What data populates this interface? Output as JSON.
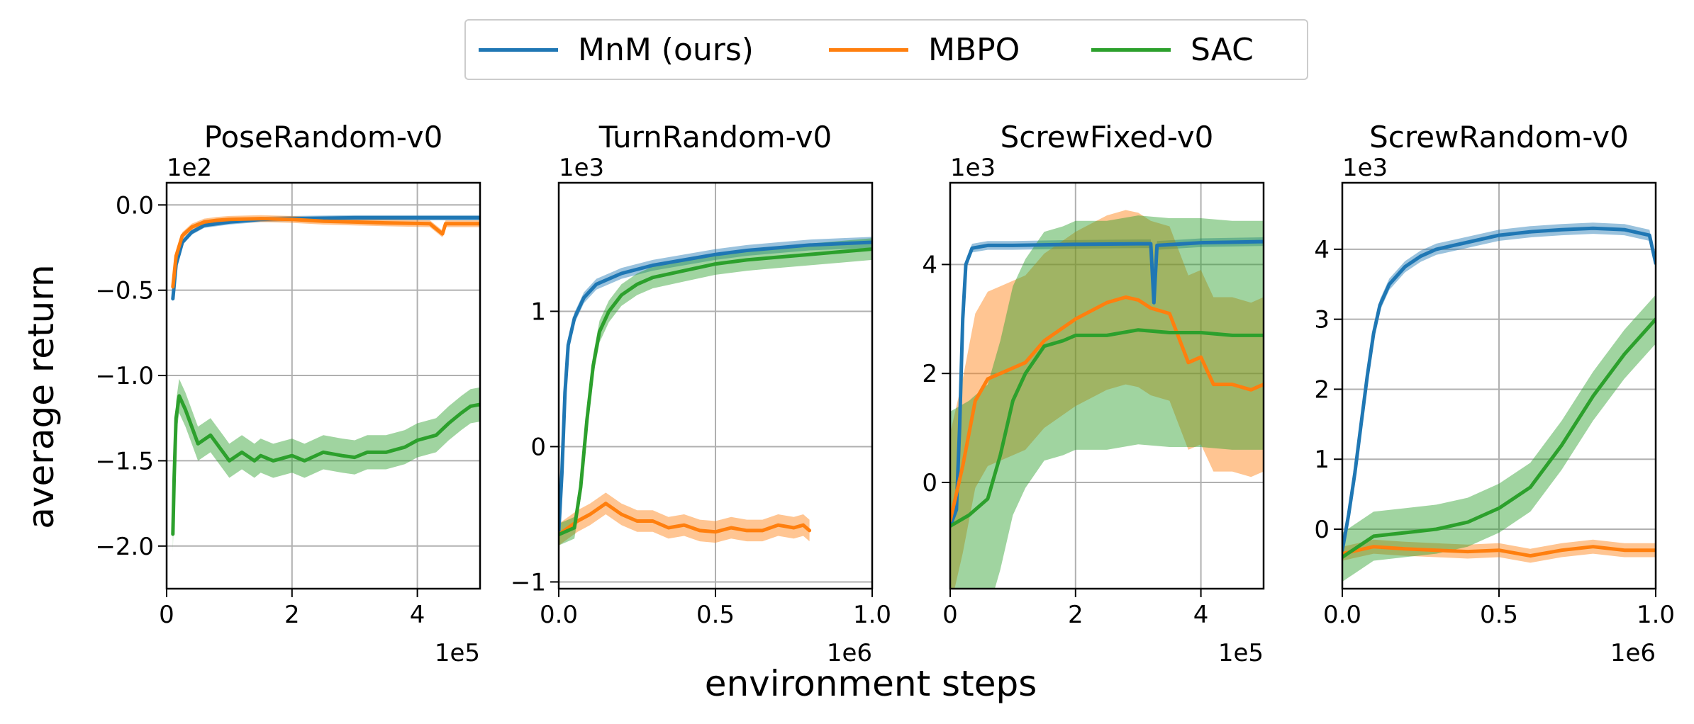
{
  "legend": {
    "items": [
      {
        "name": "MnM (ours)",
        "color": "#1f77b4"
      },
      {
        "name": "MBPO",
        "color": "#ff7f0e"
      },
      {
        "name": "SAC",
        "color": "#2ca02c"
      }
    ]
  },
  "ylabel": "average return",
  "xlabel": "environment steps",
  "chart_data": [
    {
      "type": "line",
      "title": "PoseRandom-v0",
      "x_multiplier": "1e5",
      "y_multiplier": "1e2",
      "xlim": [
        0,
        5
      ],
      "ylim": [
        -2.25,
        0.13
      ],
      "xticks": [
        0,
        2,
        4
      ],
      "yticks": [
        0.0,
        -0.5,
        -1.0,
        -1.5,
        -2.0
      ],
      "ytick_labels": [
        "0.0",
        "−0.5",
        "−1.0",
        "−1.5",
        "−2.0"
      ],
      "grid": true,
      "series": [
        {
          "name": "MnM (ours)",
          "color": "#1f77b4",
          "points": [
            [
              0.1,
              -0.55
            ],
            [
              0.15,
              -0.35
            ],
            [
              0.25,
              -0.22
            ],
            [
              0.4,
              -0.16
            ],
            [
              0.6,
              -0.12
            ],
            [
              0.8,
              -0.11
            ],
            [
              1.0,
              -0.1
            ],
            [
              1.5,
              -0.085
            ],
            [
              2.0,
              -0.08
            ],
            [
              3.0,
              -0.075
            ],
            [
              4.0,
              -0.075
            ],
            [
              5.0,
              -0.075
            ]
          ],
          "band": 0.015
        },
        {
          "name": "MBPO",
          "color": "#ff7f0e",
          "points": [
            [
              0.1,
              -0.48
            ],
            [
              0.15,
              -0.3
            ],
            [
              0.25,
              -0.18
            ],
            [
              0.4,
              -0.13
            ],
            [
              0.6,
              -0.1
            ],
            [
              0.8,
              -0.09
            ],
            [
              1.0,
              -0.085
            ],
            [
              1.5,
              -0.08
            ],
            [
              2.0,
              -0.085
            ],
            [
              2.5,
              -0.095
            ],
            [
              3.0,
              -0.1
            ],
            [
              3.5,
              -0.105
            ],
            [
              4.2,
              -0.11
            ],
            [
              4.4,
              -0.17
            ],
            [
              4.45,
              -0.11
            ],
            [
              5.0,
              -0.11
            ]
          ],
          "band": 0.02
        },
        {
          "name": "SAC",
          "color": "#2ca02c",
          "points": [
            [
              0.1,
              -1.93
            ],
            [
              0.12,
              -1.6
            ],
            [
              0.15,
              -1.25
            ],
            [
              0.2,
              -1.12
            ],
            [
              0.3,
              -1.2
            ],
            [
              0.4,
              -1.3
            ],
            [
              0.5,
              -1.4
            ],
            [
              0.7,
              -1.35
            ],
            [
              0.9,
              -1.45
            ],
            [
              1.0,
              -1.5
            ],
            [
              1.2,
              -1.45
            ],
            [
              1.4,
              -1.5
            ],
            [
              1.5,
              -1.47
            ],
            [
              1.7,
              -1.5
            ],
            [
              2.0,
              -1.47
            ],
            [
              2.2,
              -1.5
            ],
            [
              2.5,
              -1.45
            ],
            [
              2.8,
              -1.47
            ],
            [
              3.0,
              -1.48
            ],
            [
              3.2,
              -1.45
            ],
            [
              3.5,
              -1.45
            ],
            [
              3.8,
              -1.42
            ],
            [
              4.0,
              -1.38
            ],
            [
              4.3,
              -1.35
            ],
            [
              4.5,
              -1.28
            ],
            [
              4.7,
              -1.22
            ],
            [
              4.85,
              -1.18
            ],
            [
              5.0,
              -1.17
            ]
          ],
          "band": 0.1
        }
      ]
    },
    {
      "type": "line",
      "title": "TurnRandom-v0",
      "x_multiplier": "1e6",
      "y_multiplier": "1e3",
      "xlim": [
        0,
        1.0
      ],
      "ylim": [
        -1.05,
        1.95
      ],
      "xticks": [
        0.0,
        0.5,
        1.0
      ],
      "xtick_labels": [
        "0.0",
        "0.5",
        "1.0"
      ],
      "yticks": [
        1,
        0,
        -1
      ],
      "ytick_labels": [
        "1",
        "0",
        "−1"
      ],
      "grid": true,
      "series": [
        {
          "name": "MnM (ours)",
          "color": "#1f77b4",
          "points": [
            [
              0.0,
              -0.63
            ],
            [
              0.01,
              -0.2
            ],
            [
              0.02,
              0.4
            ],
            [
              0.03,
              0.75
            ],
            [
              0.05,
              0.95
            ],
            [
              0.08,
              1.1
            ],
            [
              0.12,
              1.2
            ],
            [
              0.2,
              1.28
            ],
            [
              0.3,
              1.34
            ],
            [
              0.4,
              1.38
            ],
            [
              0.5,
              1.42
            ],
            [
              0.6,
              1.45
            ],
            [
              0.7,
              1.47
            ],
            [
              0.8,
              1.49
            ],
            [
              0.9,
              1.5
            ],
            [
              1.0,
              1.51
            ]
          ],
          "band": 0.04
        },
        {
          "name": "MBPO",
          "color": "#ff7f0e",
          "points": [
            [
              0.0,
              -0.65
            ],
            [
              0.03,
              -0.6
            ],
            [
              0.06,
              -0.55
            ],
            [
              0.1,
              -0.5
            ],
            [
              0.15,
              -0.42
            ],
            [
              0.2,
              -0.5
            ],
            [
              0.25,
              -0.55
            ],
            [
              0.3,
              -0.55
            ],
            [
              0.35,
              -0.6
            ],
            [
              0.4,
              -0.58
            ],
            [
              0.45,
              -0.62
            ],
            [
              0.5,
              -0.63
            ],
            [
              0.55,
              -0.6
            ],
            [
              0.6,
              -0.62
            ],
            [
              0.65,
              -0.62
            ],
            [
              0.7,
              -0.58
            ],
            [
              0.75,
              -0.6
            ],
            [
              0.78,
              -0.58
            ],
            [
              0.8,
              -0.62
            ]
          ],
          "band": 0.08
        },
        {
          "name": "SAC",
          "color": "#2ca02c",
          "points": [
            [
              0.0,
              -0.65
            ],
            [
              0.05,
              -0.6
            ],
            [
              0.07,
              -0.3
            ],
            [
              0.09,
              0.2
            ],
            [
              0.11,
              0.6
            ],
            [
              0.13,
              0.85
            ],
            [
              0.16,
              1.0
            ],
            [
              0.2,
              1.12
            ],
            [
              0.25,
              1.2
            ],
            [
              0.3,
              1.25
            ],
            [
              0.4,
              1.3
            ],
            [
              0.5,
              1.35
            ],
            [
              0.6,
              1.38
            ],
            [
              0.7,
              1.4
            ],
            [
              0.8,
              1.42
            ],
            [
              0.9,
              1.44
            ],
            [
              1.0,
              1.46
            ]
          ],
          "band": 0.08
        }
      ]
    },
    {
      "type": "line",
      "title": "ScrewFixed-v0",
      "x_multiplier": "1e5",
      "y_multiplier": "1e3",
      "xlim": [
        0,
        5
      ],
      "ylim": [
        -1.95,
        5.5
      ],
      "xticks": [
        0,
        2,
        4
      ],
      "yticks": [
        4,
        2,
        0
      ],
      "grid": true,
      "series": [
        {
          "name": "MnM (ours)",
          "color": "#1f77b4",
          "points": [
            [
              0.0,
              -0.8
            ],
            [
              0.1,
              -0.5
            ],
            [
              0.15,
              1.0
            ],
            [
              0.2,
              3.0
            ],
            [
              0.25,
              4.0
            ],
            [
              0.35,
              4.3
            ],
            [
              0.6,
              4.35
            ],
            [
              1.0,
              4.35
            ],
            [
              2.0,
              4.37
            ],
            [
              3.0,
              4.38
            ],
            [
              3.2,
              4.38
            ],
            [
              3.25,
              3.3
            ],
            [
              3.3,
              4.35
            ],
            [
              4.0,
              4.4
            ],
            [
              5.0,
              4.42
            ]
          ],
          "band": 0.08
        },
        {
          "name": "MBPO",
          "color": "#ff7f0e",
          "points": [
            [
              0.0,
              -0.7
            ],
            [
              0.2,
              0.3
            ],
            [
              0.4,
              1.5
            ],
            [
              0.6,
              1.9
            ],
            [
              0.8,
              2.0
            ],
            [
              1.0,
              2.1
            ],
            [
              1.2,
              2.2
            ],
            [
              1.5,
              2.6
            ],
            [
              2.0,
              3.0
            ],
            [
              2.5,
              3.3
            ],
            [
              2.8,
              3.4
            ],
            [
              3.0,
              3.35
            ],
            [
              3.2,
              3.2
            ],
            [
              3.5,
              3.1
            ],
            [
              3.6,
              2.8
            ],
            [
              3.8,
              2.2
            ],
            [
              4.0,
              2.3
            ],
            [
              4.2,
              1.8
            ],
            [
              4.5,
              1.8
            ],
            [
              4.8,
              1.7
            ],
            [
              5.0,
              1.8
            ]
          ],
          "band": 1.6
        },
        {
          "name": "SAC",
          "color": "#2ca02c",
          "points": [
            [
              0.0,
              -0.8
            ],
            [
              0.3,
              -0.6
            ],
            [
              0.6,
              -0.3
            ],
            [
              0.8,
              0.5
            ],
            [
              1.0,
              1.5
            ],
            [
              1.2,
              2.0
            ],
            [
              1.5,
              2.5
            ],
            [
              1.8,
              2.6
            ],
            [
              2.0,
              2.7
            ],
            [
              2.5,
              2.7
            ],
            [
              3.0,
              2.8
            ],
            [
              3.5,
              2.75
            ],
            [
              4.0,
              2.75
            ],
            [
              4.5,
              2.7
            ],
            [
              5.0,
              2.7
            ]
          ],
          "band": 2.1
        }
      ]
    },
    {
      "type": "line",
      "title": "ScrewRandom-v0",
      "x_multiplier": "1e6",
      "y_multiplier": "1e3",
      "xlim": [
        0,
        1.0
      ],
      "ylim": [
        -0.85,
        4.95
      ],
      "xticks": [
        0.0,
        0.5,
        1.0
      ],
      "xtick_labels": [
        "0.0",
        "0.5",
        "1.0"
      ],
      "yticks": [
        4,
        3,
        2,
        1,
        0
      ],
      "grid": true,
      "series": [
        {
          "name": "MnM (ours)",
          "color": "#1f77b4",
          "points": [
            [
              0.0,
              -0.3
            ],
            [
              0.02,
              0.2
            ],
            [
              0.04,
              0.8
            ],
            [
              0.06,
              1.5
            ],
            [
              0.08,
              2.2
            ],
            [
              0.1,
              2.8
            ],
            [
              0.12,
              3.2
            ],
            [
              0.15,
              3.5
            ],
            [
              0.2,
              3.75
            ],
            [
              0.25,
              3.9
            ],
            [
              0.3,
              4.0
            ],
            [
              0.4,
              4.1
            ],
            [
              0.5,
              4.2
            ],
            [
              0.6,
              4.25
            ],
            [
              0.7,
              4.28
            ],
            [
              0.8,
              4.3
            ],
            [
              0.9,
              4.28
            ],
            [
              0.98,
              4.2
            ],
            [
              1.0,
              3.8
            ]
          ],
          "band": 0.08
        },
        {
          "name": "MBPO",
          "color": "#ff7f0e",
          "points": [
            [
              0.0,
              -0.35
            ],
            [
              0.1,
              -0.25
            ],
            [
              0.2,
              -0.28
            ],
            [
              0.3,
              -0.3
            ],
            [
              0.4,
              -0.32
            ],
            [
              0.5,
              -0.3
            ],
            [
              0.6,
              -0.38
            ],
            [
              0.7,
              -0.3
            ],
            [
              0.8,
              -0.25
            ],
            [
              0.9,
              -0.3
            ],
            [
              1.0,
              -0.3
            ]
          ],
          "band": 0.1
        },
        {
          "name": "SAC",
          "color": "#2ca02c",
          "points": [
            [
              0.0,
              -0.4
            ],
            [
              0.1,
              -0.1
            ],
            [
              0.2,
              -0.05
            ],
            [
              0.3,
              0.0
            ],
            [
              0.4,
              0.1
            ],
            [
              0.5,
              0.3
            ],
            [
              0.6,
              0.6
            ],
            [
              0.7,
              1.2
            ],
            [
              0.8,
              1.9
            ],
            [
              0.9,
              2.5
            ],
            [
              1.0,
              3.0
            ]
          ],
          "band": 0.35
        }
      ]
    }
  ]
}
